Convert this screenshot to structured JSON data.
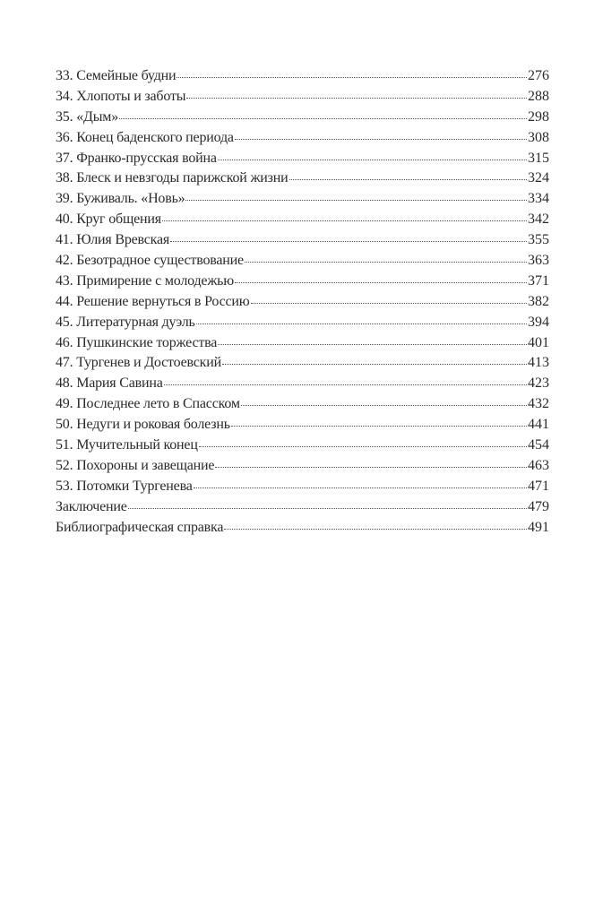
{
  "toc": [
    {
      "title": "33. Семейные будни",
      "page": "276"
    },
    {
      "title": "34. Хлопоты и заботы",
      "page": "288"
    },
    {
      "title": "35. «Дым»",
      "page": "298"
    },
    {
      "title": "36. Конец баденского периода",
      "page": "308"
    },
    {
      "title": "37. Франко-прусская война",
      "page": "315"
    },
    {
      "title": "38. Блеск и невзгоды парижской жизни",
      "page": "324"
    },
    {
      "title": "39. Буживаль. «Новь»",
      "page": "334"
    },
    {
      "title": "40. Круг общения",
      "page": "342"
    },
    {
      "title": "41. Юлия Вревская",
      "page": "355"
    },
    {
      "title": "42. Безотрадное существование",
      "page": "363"
    },
    {
      "title": "43. Примирение с молодежью",
      "page": "371"
    },
    {
      "title": "44. Решение вернуться в Россию",
      "page": "382"
    },
    {
      "title": "45. Литературная дуэль",
      "page": "394"
    },
    {
      "title": "46. Пушкинские торжества",
      "page": "401"
    },
    {
      "title": "47. Тургенев и Достоевский",
      "page": "413"
    },
    {
      "title": "48. Мария Савина",
      "page": "423"
    },
    {
      "title": "49. Последнее лето в Спасском",
      "page": "432"
    },
    {
      "title": "50. Недуги и роковая болезнь",
      "page": "441"
    },
    {
      "title": "51. Мучительный конец",
      "page": "454"
    },
    {
      "title": "52. Похороны и завещание",
      "page": "463"
    },
    {
      "title": "53. Потомки Тургенева",
      "page": "471"
    },
    {
      "title": "Заключение",
      "page": "479"
    },
    {
      "title": "Библиографическая справка",
      "page": "491"
    }
  ]
}
